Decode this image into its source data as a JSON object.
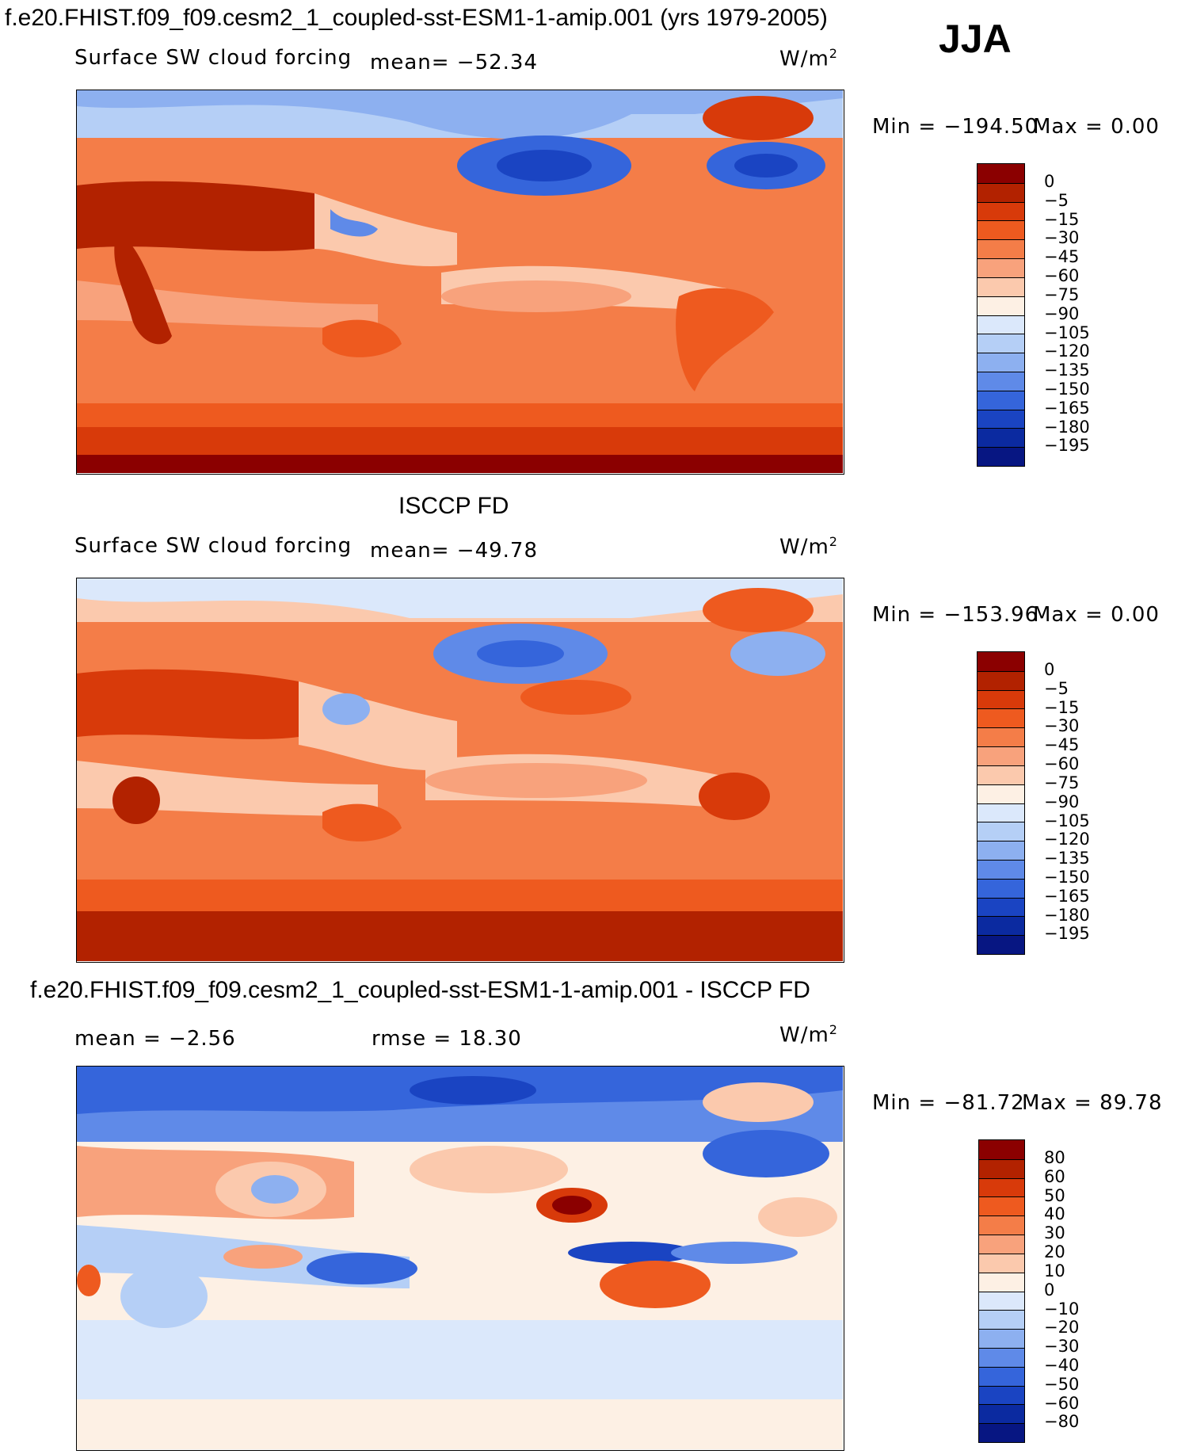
{
  "figure": {
    "title": "f.e20.FHIST.f09_f09.cesm2_1_coupled-sst-ESM1-1-amip.001 (yrs 1979-2005)",
    "season": "JJA"
  },
  "panels": [
    {
      "header": "",
      "variable": "Surface SW cloud forcing",
      "mean_label": "mean= −52.34",
      "rmse_label": "",
      "units": "W/m",
      "units_sup": "2",
      "min_label": "Min = −194.50",
      "max_label": "Max =    0.00",
      "colorbar_labels": [
        "0",
        "−5",
        "−15",
        "−30",
        "−45",
        "−60",
        "−75",
        "−90",
        "−105",
        "−120",
        "−135",
        "−150",
        "−165",
        "−180",
        "−195"
      ],
      "colorbar_colors": [
        "#8b0000",
        "#b22200",
        "#d83a0a",
        "#ee5a1f",
        "#f47d48",
        "#f8a27c",
        "#fbc9ad",
        "#fdf0e4",
        "#dbe8fb",
        "#b5cff6",
        "#8db0f0",
        "#5f8ae8",
        "#3565db",
        "#1a44c2",
        "#0b2aa0",
        "#071682"
      ]
    },
    {
      "header": "ISCCP FD",
      "variable": "Surface SW cloud forcing",
      "mean_label": "mean= −49.78",
      "rmse_label": "",
      "units": "W/m",
      "units_sup": "2",
      "min_label": "Min = −153.96",
      "max_label": "Max =    0.00",
      "colorbar_labels": [
        "0",
        "−5",
        "−15",
        "−30",
        "−45",
        "−60",
        "−75",
        "−90",
        "−105",
        "−120",
        "−135",
        "−150",
        "−165",
        "−180",
        "−195"
      ],
      "colorbar_colors": [
        "#8b0000",
        "#b22200",
        "#d83a0a",
        "#ee5a1f",
        "#f47d48",
        "#f8a27c",
        "#fbc9ad",
        "#fdf0e4",
        "#dbe8fb",
        "#b5cff6",
        "#8db0f0",
        "#5f8ae8",
        "#3565db",
        "#1a44c2",
        "#0b2aa0",
        "#071682"
      ]
    },
    {
      "header": "f.e20.FHIST.f09_f09.cesm2_1_coupled-sst-ESM1-1-amip.001 - ISCCP FD",
      "variable": "",
      "mean_label": "mean =   −2.56",
      "rmse_label": "rmse =   18.30",
      "units": "W/m",
      "units_sup": "2",
      "min_label": "Min = −81.72",
      "max_label": "Max =  89.78",
      "colorbar_labels": [
        "80",
        "60",
        "50",
        "40",
        "30",
        "20",
        "10",
        "0",
        "−10",
        "−20",
        "−30",
        "−40",
        "−50",
        "−60",
        "−80"
      ],
      "colorbar_colors": [
        "#8b0000",
        "#b22200",
        "#d83a0a",
        "#ee5a1f",
        "#f47d48",
        "#f8a27c",
        "#fbc9ad",
        "#fdf0e4",
        "#dbe8fb",
        "#b5cff6",
        "#8db0f0",
        "#5f8ae8",
        "#3565db",
        "#1a44c2",
        "#0b2aa0",
        "#071682"
      ]
    }
  ]
}
